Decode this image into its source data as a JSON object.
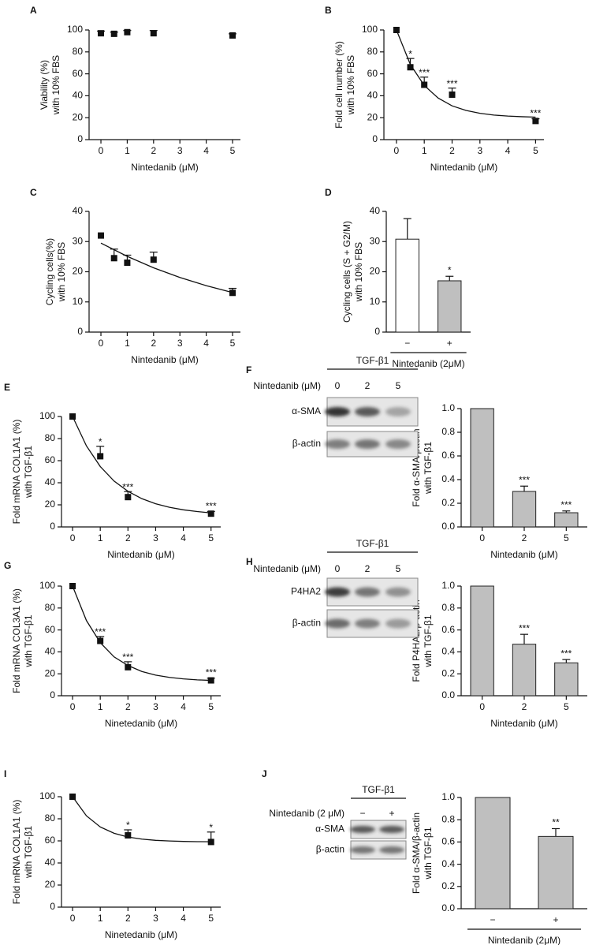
{
  "chart_data": [
    {
      "type": "scatter",
      "label": "A",
      "x": [
        0,
        0.5,
        1,
        2,
        5
      ],
      "values": [
        97,
        96.5,
        98,
        97,
        95
      ],
      "errors": [
        2,
        1.5,
        1.5,
        2.5,
        1.5
      ],
      "xlim": [
        -0.45,
        5.3
      ],
      "ylim": [
        0,
        100
      ],
      "xticks": [
        0,
        1,
        2,
        3,
        4,
        5
      ],
      "yticks": [
        0,
        20,
        40,
        60,
        80,
        100
      ],
      "xlabel": "Nintedanib (μM)",
      "ylabel": [
        "Viability (%)",
        "with 10% FBS"
      ],
      "color": "#111111"
    },
    {
      "type": "scatter",
      "label": "B",
      "x": [
        0,
        0.5,
        1,
        2,
        5
      ],
      "values": [
        100,
        66,
        50,
        41,
        17
      ],
      "errors": [
        null,
        8,
        7,
        6,
        2
      ],
      "annotations": [
        null,
        "*",
        "***",
        "***",
        "***"
      ],
      "fit": {
        "x": [
          0,
          0.5,
          1,
          1.5,
          2,
          2.5,
          3,
          3.5,
          4,
          4.5,
          5
        ],
        "values": [
          100,
          68.5,
          49.4,
          37.9,
          30.8,
          26.6,
          24.0,
          22.4,
          21.5,
          20.9,
          20.5
        ]
      },
      "xlim": [
        -0.45,
        5.3
      ],
      "ylim": [
        0,
        100
      ],
      "xticks": [
        0,
        1,
        2,
        3,
        4,
        5
      ],
      "yticks": [
        0,
        20,
        40,
        60,
        80,
        100
      ],
      "xlabel": "Nintedanib (μM)",
      "ylabel": [
        "Fold cell number (%)",
        "with 10% FBS"
      ],
      "color": "#111111"
    },
    {
      "type": "scatter",
      "label": "C",
      "x": [
        0,
        0.5,
        1,
        2,
        5
      ],
      "values": [
        32,
        24.5,
        23,
        24,
        13
      ],
      "errors": [
        null,
        3,
        2.5,
        2.5,
        1.5
      ],
      "fit": {
        "x": [
          0,
          1,
          2,
          3,
          4,
          5
        ],
        "values": [
          29.5,
          25.1,
          21.3,
          18.1,
          15.4,
          13.1
        ]
      },
      "xlim": [
        -0.45,
        5.3
      ],
      "ylim": [
        0,
        40
      ],
      "xticks": [
        0,
        1,
        2,
        3,
        4,
        5
      ],
      "yticks": [
        0,
        10,
        20,
        30,
        40
      ],
      "xlabel": "Nintedanib (μM)",
      "ylabel": [
        "Cycling cells(%)",
        "with 10% FBS"
      ],
      "color": "#111111"
    },
    {
      "type": "bar",
      "label": "D",
      "categories": [
        "−",
        "+"
      ],
      "values": [
        30.8,
        17
      ],
      "errors": [
        6.8,
        1.5
      ],
      "annotations": [
        null,
        "*"
      ],
      "colors": [
        "#ffffff",
        "#bfbfbf"
      ],
      "ylim": [
        0,
        40
      ],
      "yticks": [
        0,
        10,
        20,
        30,
        40
      ],
      "xlabel": "Nintedanib (2μM)",
      "ylabel": [
        "Cycling cells (S + G2/M)",
        "with 10% FBS"
      ],
      "category_rule": true
    },
    {
      "type": "scatter",
      "label": "E",
      "x": [
        0,
        1,
        2,
        5
      ],
      "values": [
        100,
        64,
        27,
        12
      ],
      "errors": [
        null,
        9,
        5,
        2
      ],
      "annotations": [
        null,
        "*",
        "***",
        "***"
      ],
      "fit": {
        "x": [
          0,
          0.5,
          1,
          1.5,
          2,
          2.5,
          3,
          3.5,
          4,
          4.5,
          5
        ],
        "values": [
          100,
          73.4,
          54.7,
          41.5,
          32.3,
          25.6,
          21.0,
          17.8,
          15.5,
          13.9,
          12.7
        ]
      },
      "xlim": [
        -0.4,
        5.35
      ],
      "ylim": [
        0,
        100
      ],
      "xticks": [
        0,
        1,
        2,
        3,
        4,
        5
      ],
      "yticks": [
        0,
        20,
        40,
        60,
        80,
        100
      ],
      "xlabel": "Nintedanib (μM)",
      "ylabel": [
        "Fold mRNA COL1A1 (%)",
        "with TGF-β1"
      ],
      "color": "#111111"
    },
    {
      "type": "bar",
      "categories": [
        "0",
        "2",
        "5"
      ],
      "values": [
        1.0,
        0.3,
        0.12
      ],
      "errors": [
        null,
        0.045,
        0.015
      ],
      "annotations": [
        null,
        "***",
        "***"
      ],
      "colors": [
        "#bfbfbf",
        "#bfbfbf",
        "#bfbfbf"
      ],
      "ylim": [
        0,
        1.0
      ],
      "yticks": [
        {
          "value": 0,
          "label": "0.0"
        },
        0.2,
        0.4,
        0.6,
        0.8,
        {
          "value": 1,
          "label": "1.0"
        }
      ],
      "xlabel": "Nintedanib (μM)",
      "ylabel": [
        "Fold α-SMA/βactin",
        "with TGF-β1"
      ]
    },
    {
      "type": "scatter",
      "label": "G",
      "x": [
        0,
        1,
        2,
        5
      ],
      "values": [
        100,
        50,
        26,
        14
      ],
      "errors": [
        null,
        4,
        5,
        2
      ],
      "annotations": [
        null,
        "***",
        "***",
        "***"
      ],
      "fit": {
        "x": [
          0,
          0.5,
          1,
          1.5,
          2,
          2.5,
          3,
          3.5,
          4,
          4.5,
          5
        ],
        "values": [
          100,
          68.6,
          48.4,
          35.4,
          27.6,
          22.1,
          18.8,
          16.7,
          15.4,
          14.5,
          14.0
        ]
      },
      "xlim": [
        -0.4,
        5.35
      ],
      "ylim": [
        0,
        100
      ],
      "xticks": [
        0,
        1,
        2,
        3,
        4,
        5
      ],
      "yticks": [
        0,
        20,
        40,
        60,
        80,
        100
      ],
      "xlabel": "Ninetedanib (μM)",
      "ylabel": [
        "Fold mRNA COL3A1 (%)",
        "with TGF-β1"
      ],
      "color": "#111111"
    },
    {
      "type": "bar",
      "categories": [
        "0",
        "2",
        "5"
      ],
      "values": [
        1.0,
        0.47,
        0.3
      ],
      "errors": [
        null,
        0.09,
        0.03
      ],
      "annotations": [
        null,
        "***",
        "***"
      ],
      "colors": [
        "#bfbfbf",
        "#bfbfbf",
        "#bfbfbf"
      ],
      "ylim": [
        0,
        1.0
      ],
      "yticks": [
        {
          "value": 0,
          "label": "0.0"
        },
        0.2,
        0.4,
        0.6,
        0.8,
        {
          "value": 1,
          "label": "1.0"
        }
      ],
      "xlabel": "Nintedanib (μM)",
      "ylabel": [
        "Fold P4HA2/β-actin",
        "with TGF-β1"
      ]
    },
    {
      "type": "scatter",
      "label": "I",
      "x": [
        0,
        2,
        5
      ],
      "values": [
        100,
        65,
        59
      ],
      "errors": [
        null,
        5,
        9
      ],
      "annotations": [
        null,
        "*",
        "*"
      ],
      "fit": {
        "x": [
          0,
          0.5,
          1,
          1.5,
          2,
          2.5,
          3,
          3.5,
          4,
          4.5,
          5
        ],
        "values": [
          100,
          82.7,
          72.6,
          66.9,
          63.5,
          61.6,
          60.5,
          59.9,
          59.5,
          59.3,
          59.2
        ]
      },
      "xlim": [
        -0.4,
        5.35
      ],
      "ylim": [
        0,
        100
      ],
      "xticks": [
        0,
        1,
        2,
        3,
        4,
        5
      ],
      "yticks": [
        0,
        20,
        40,
        60,
        80,
        100
      ],
      "xlabel": "Ninetedanib (μM)",
      "ylabel": [
        "Fold mRNA COL1A1 (%)",
        "with TGF-β1"
      ],
      "color": "#111111"
    },
    {
      "type": "bar",
      "categories": [
        "−",
        "+"
      ],
      "values": [
        1.0,
        0.65
      ],
      "errors": [
        null,
        0.07
      ],
      "annotations": [
        null,
        "**"
      ],
      "colors": [
        "#bfbfbf",
        "#bfbfbf"
      ],
      "ylim": [
        0,
        1.0
      ],
      "yticks": [
        {
          "value": 0,
          "label": "0.0"
        },
        0.2,
        0.4,
        0.6,
        0.8,
        {
          "value": 1,
          "label": "1.0"
        }
      ],
      "xlabel": "Nintedanib (2μM)",
      "ylabel": [
        "Fold α-SMA/β-actin",
        "with TGF-β1"
      ],
      "category_rule": true
    }
  ],
  "blots": [
    {
      "label": "F",
      "title": "TGF-β1",
      "treatment": "Nintedanib (μM)",
      "lanes": [
        "0",
        "2",
        "5"
      ],
      "rows": [
        "α-SMA",
        "β-actin"
      ]
    },
    {
      "label": "H",
      "title": "TGF-β1",
      "treatment": "Nintedanib (μM)",
      "lanes": [
        "0",
        "2",
        "5"
      ],
      "rows": [
        "P4HA2",
        "β-actin"
      ]
    },
    {
      "label": "J",
      "title": "TGF-β1",
      "treatment": "Nintedanib (2 μM)",
      "lanes": [
        "−",
        "+"
      ],
      "rows": [
        "α-SMA",
        "β-actin"
      ]
    }
  ]
}
